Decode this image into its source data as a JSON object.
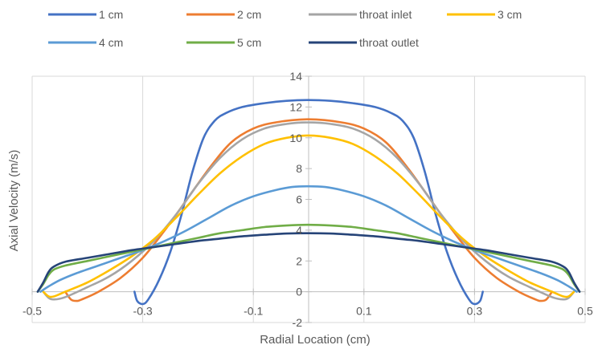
{
  "chart_data": {
    "type": "line",
    "xlabel": "Radial Location (cm)",
    "ylabel": "Axial Velocity (m/s)",
    "xlim": [
      -0.5,
      0.5
    ],
    "ylim": [
      -2,
      14
    ],
    "x_ticks": [
      "-0.5",
      "-0.3",
      "-0.1",
      "0.1",
      "0.3",
      "0.5"
    ],
    "y_ticks": [
      "14",
      "12",
      "10",
      "8",
      "6",
      "4",
      "2",
      "0",
      "-2"
    ],
    "x_tick_values": [
      -0.5,
      -0.3,
      -0.1,
      0.1,
      0.3,
      0.5
    ],
    "y_tick_values": [
      14,
      12,
      10,
      8,
      6,
      4,
      2,
      0,
      -2
    ],
    "grid": "vertical",
    "legend_position": "top",
    "series": [
      {
        "name": "1 cm",
        "color": "#4472C4",
        "points": [
          [
            -0.315,
            0
          ],
          [
            -0.31,
            -0.6
          ],
          [
            -0.3,
            -0.8
          ],
          [
            -0.29,
            -0.5
          ],
          [
            -0.27,
            0.8
          ],
          [
            -0.25,
            2.6
          ],
          [
            -0.23,
            5.0
          ],
          [
            -0.21,
            7.8
          ],
          [
            -0.19,
            10.0
          ],
          [
            -0.17,
            11.1
          ],
          [
            -0.15,
            11.6
          ],
          [
            -0.12,
            12.0
          ],
          [
            -0.08,
            12.25
          ],
          [
            -0.04,
            12.4
          ],
          [
            0,
            12.45
          ],
          [
            0.04,
            12.4
          ],
          [
            0.08,
            12.25
          ],
          [
            0.12,
            12.0
          ],
          [
            0.15,
            11.6
          ],
          [
            0.17,
            11.1
          ],
          [
            0.19,
            10.0
          ],
          [
            0.21,
            7.8
          ],
          [
            0.23,
            5.0
          ],
          [
            0.25,
            2.6
          ],
          [
            0.27,
            0.8
          ],
          [
            0.29,
            -0.5
          ],
          [
            0.3,
            -0.8
          ],
          [
            0.31,
            -0.6
          ],
          [
            0.315,
            0
          ]
        ]
      },
      {
        "name": "2 cm",
        "color": "#ED7D31",
        "points": [
          [
            -0.44,
            0
          ],
          [
            -0.43,
            -0.5
          ],
          [
            -0.42,
            -0.6
          ],
          [
            -0.41,
            -0.5
          ],
          [
            -0.38,
            0.0
          ],
          [
            -0.34,
            0.9
          ],
          [
            -0.3,
            2.2
          ],
          [
            -0.26,
            4.0
          ],
          [
            -0.22,
            6.0
          ],
          [
            -0.18,
            8.0
          ],
          [
            -0.14,
            9.7
          ],
          [
            -0.1,
            10.6
          ],
          [
            -0.06,
            11.0
          ],
          [
            0,
            11.2
          ],
          [
            0.06,
            11.0
          ],
          [
            0.1,
            10.6
          ],
          [
            0.14,
            9.7
          ],
          [
            0.18,
            8.0
          ],
          [
            0.22,
            6.0
          ],
          [
            0.26,
            4.0
          ],
          [
            0.3,
            2.2
          ],
          [
            0.34,
            0.9
          ],
          [
            0.38,
            0.0
          ],
          [
            0.41,
            -0.5
          ],
          [
            0.42,
            -0.6
          ],
          [
            0.43,
            -0.5
          ],
          [
            0.44,
            0
          ]
        ]
      },
      {
        "name": "throat inlet",
        "color": "#A5A5A5",
        "points": [
          [
            -0.48,
            0
          ],
          [
            -0.47,
            -0.4
          ],
          [
            -0.46,
            -0.5
          ],
          [
            -0.44,
            -0.35
          ],
          [
            -0.4,
            0.3
          ],
          [
            -0.36,
            1.0
          ],
          [
            -0.32,
            2.0
          ],
          [
            -0.28,
            3.3
          ],
          [
            -0.24,
            5.0
          ],
          [
            -0.2,
            7.0
          ],
          [
            -0.16,
            8.7
          ],
          [
            -0.12,
            9.9
          ],
          [
            -0.08,
            10.6
          ],
          [
            -0.04,
            10.9
          ],
          [
            0,
            11.0
          ],
          [
            0.04,
            10.9
          ],
          [
            0.08,
            10.6
          ],
          [
            0.12,
            9.9
          ],
          [
            0.16,
            8.7
          ],
          [
            0.2,
            7.0
          ],
          [
            0.24,
            5.0
          ],
          [
            0.28,
            3.3
          ],
          [
            0.32,
            2.0
          ],
          [
            0.36,
            1.0
          ],
          [
            0.4,
            0.3
          ],
          [
            0.44,
            -0.35
          ],
          [
            0.46,
            -0.5
          ],
          [
            0.47,
            -0.4
          ],
          [
            0.48,
            0
          ]
        ]
      },
      {
        "name": "3 cm",
        "color": "#FFC000",
        "points": [
          [
            -0.48,
            0
          ],
          [
            -0.47,
            -0.3
          ],
          [
            -0.46,
            -0.3
          ],
          [
            -0.44,
            0.0
          ],
          [
            -0.4,
            0.6
          ],
          [
            -0.36,
            1.4
          ],
          [
            -0.32,
            2.3
          ],
          [
            -0.28,
            3.4
          ],
          [
            -0.24,
            4.8
          ],
          [
            -0.2,
            6.3
          ],
          [
            -0.16,
            7.7
          ],
          [
            -0.12,
            8.8
          ],
          [
            -0.08,
            9.6
          ],
          [
            -0.04,
            10.0
          ],
          [
            0,
            10.15
          ],
          [
            0.04,
            10.0
          ],
          [
            0.08,
            9.6
          ],
          [
            0.12,
            8.8
          ],
          [
            0.16,
            7.7
          ],
          [
            0.2,
            6.3
          ],
          [
            0.24,
            4.8
          ],
          [
            0.28,
            3.4
          ],
          [
            0.32,
            2.3
          ],
          [
            0.36,
            1.4
          ],
          [
            0.4,
            0.6
          ],
          [
            0.44,
            0.0
          ],
          [
            0.46,
            -0.3
          ],
          [
            0.47,
            -0.3
          ],
          [
            0.48,
            0
          ]
        ]
      },
      {
        "name": "4 cm",
        "color": "#5B9BD5",
        "points": [
          [
            -0.485,
            0
          ],
          [
            -0.47,
            0.35
          ],
          [
            -0.45,
            0.75
          ],
          [
            -0.42,
            1.2
          ],
          [
            -0.38,
            1.7
          ],
          [
            -0.34,
            2.2
          ],
          [
            -0.3,
            2.7
          ],
          [
            -0.26,
            3.3
          ],
          [
            -0.22,
            4.0
          ],
          [
            -0.18,
            4.8
          ],
          [
            -0.14,
            5.6
          ],
          [
            -0.1,
            6.2
          ],
          [
            -0.06,
            6.6
          ],
          [
            -0.03,
            6.8
          ],
          [
            0,
            6.85
          ],
          [
            0.03,
            6.8
          ],
          [
            0.06,
            6.6
          ],
          [
            0.1,
            6.2
          ],
          [
            0.14,
            5.6
          ],
          [
            0.18,
            4.8
          ],
          [
            0.22,
            4.0
          ],
          [
            0.26,
            3.3
          ],
          [
            0.3,
            2.7
          ],
          [
            0.34,
            2.2
          ],
          [
            0.38,
            1.7
          ],
          [
            0.42,
            1.2
          ],
          [
            0.45,
            0.75
          ],
          [
            0.47,
            0.35
          ],
          [
            0.485,
            0
          ]
        ]
      },
      {
        "name": "5 cm",
        "color": "#70AD47",
        "points": [
          [
            -0.49,
            0
          ],
          [
            -0.48,
            0.5
          ],
          [
            -0.47,
            1.1
          ],
          [
            -0.46,
            1.45
          ],
          [
            -0.44,
            1.7
          ],
          [
            -0.4,
            2.0
          ],
          [
            -0.36,
            2.3
          ],
          [
            -0.32,
            2.6
          ],
          [
            -0.28,
            2.9
          ],
          [
            -0.24,
            3.2
          ],
          [
            -0.2,
            3.5
          ],
          [
            -0.16,
            3.8
          ],
          [
            -0.12,
            4.0
          ],
          [
            -0.08,
            4.2
          ],
          [
            -0.04,
            4.3
          ],
          [
            0,
            4.35
          ],
          [
            0.04,
            4.3
          ],
          [
            0.08,
            4.2
          ],
          [
            0.12,
            4.0
          ],
          [
            0.16,
            3.8
          ],
          [
            0.2,
            3.5
          ],
          [
            0.24,
            3.2
          ],
          [
            0.28,
            2.9
          ],
          [
            0.32,
            2.6
          ],
          [
            0.36,
            2.3
          ],
          [
            0.4,
            2.0
          ],
          [
            0.44,
            1.7
          ],
          [
            0.46,
            1.45
          ],
          [
            0.47,
            1.1
          ],
          [
            0.48,
            0.5
          ],
          [
            0.49,
            0
          ]
        ]
      },
      {
        "name": "throat outlet",
        "color": "#264478",
        "points": [
          [
            -0.49,
            0
          ],
          [
            -0.48,
            0.6
          ],
          [
            -0.47,
            1.3
          ],
          [
            -0.46,
            1.65
          ],
          [
            -0.44,
            1.95
          ],
          [
            -0.4,
            2.2
          ],
          [
            -0.36,
            2.45
          ],
          [
            -0.32,
            2.7
          ],
          [
            -0.28,
            2.9
          ],
          [
            -0.24,
            3.1
          ],
          [
            -0.2,
            3.3
          ],
          [
            -0.16,
            3.45
          ],
          [
            -0.12,
            3.6
          ],
          [
            -0.08,
            3.7
          ],
          [
            -0.04,
            3.78
          ],
          [
            0,
            3.8
          ],
          [
            0.04,
            3.78
          ],
          [
            0.08,
            3.7
          ],
          [
            0.12,
            3.6
          ],
          [
            0.16,
            3.45
          ],
          [
            0.2,
            3.3
          ],
          [
            0.24,
            3.1
          ],
          [
            0.28,
            2.9
          ],
          [
            0.32,
            2.7
          ],
          [
            0.36,
            2.45
          ],
          [
            0.4,
            2.2
          ],
          [
            0.44,
            1.95
          ],
          [
            0.46,
            1.65
          ],
          [
            0.47,
            1.3
          ],
          [
            0.48,
            0.6
          ],
          [
            0.49,
            0
          ]
        ]
      }
    ]
  }
}
